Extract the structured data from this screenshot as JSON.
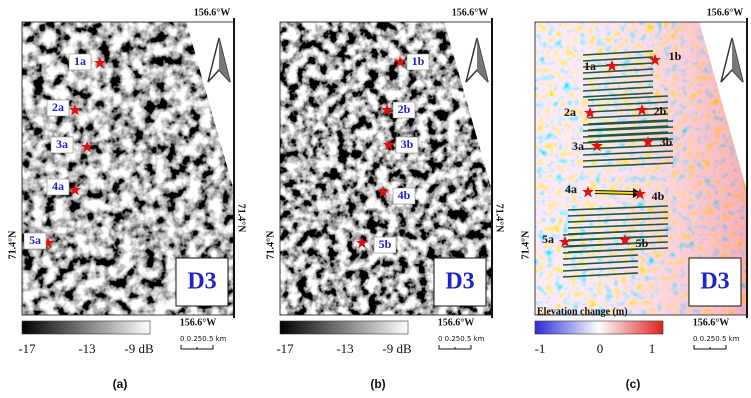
{
  "panels": [
    {
      "caption": "(a)",
      "lon_top": "156.6°W",
      "lon_bottom": "156.6°W",
      "lat_left": "71.4°N",
      "lat_right": "71.4°N",
      "site": "D3",
      "points": [
        "1a",
        "2a",
        "3a",
        "4a",
        "5a"
      ],
      "colorbar": {
        "ticks": [
          "-17",
          "-13",
          "-9 dB"
        ]
      },
      "scale": "0 0.250.5 km"
    },
    {
      "caption": "(b)",
      "lon_top": "156.6°W",
      "lon_bottom": "156.6°W",
      "lat_left": "71.4°N",
      "lat_right": "71.4°N",
      "site": "D3",
      "points": [
        "1b",
        "2b",
        "3b",
        "4b",
        "5b"
      ],
      "colorbar": {
        "ticks": [
          "-17",
          "-13",
          "-9 dB"
        ]
      },
      "scale": "0 0.250.5 km"
    },
    {
      "caption": "(c)",
      "lon_top": "156.6°W",
      "lon_bottom": "156.6°W",
      "lat_left": "71.4°N",
      "lat_right": "71.4°N",
      "site": "D3",
      "points": [
        "1a",
        "2a",
        "3a",
        "4a",
        "5a",
        "1b",
        "2b",
        "3b",
        "4b",
        "5b"
      ],
      "colorbar": {
        "title": "Elevation change (m)",
        "ticks": [
          "-1",
          "0",
          "1"
        ]
      },
      "scale": "0 0.250.5 km"
    }
  ]
}
